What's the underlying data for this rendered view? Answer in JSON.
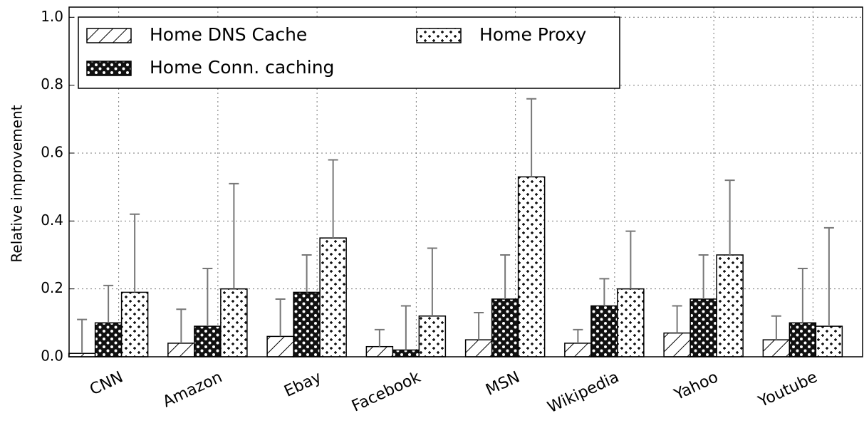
{
  "chart_data": {
    "type": "bar",
    "ylabel": "Relative improvement",
    "categories": [
      "CNN",
      "Amazon",
      "Ebay",
      "Facebook",
      "MSN",
      "Wikipedia",
      "Yahoo",
      "Youtube"
    ],
    "series": [
      {
        "name": "Home DNS Cache",
        "pattern": "hatch",
        "color": "#000000",
        "values": [
          0.01,
          0.04,
          0.06,
          0.03,
          0.05,
          0.04,
          0.07,
          0.05
        ],
        "errors": [
          0.1,
          0.1,
          0.11,
          0.05,
          0.08,
          0.04,
          0.08,
          0.07
        ]
      },
      {
        "name": "Home Conn. caching",
        "pattern": "stars",
        "color": "#000000",
        "values": [
          0.1,
          0.09,
          0.19,
          0.02,
          0.17,
          0.15,
          0.17,
          0.1
        ],
        "errors": [
          0.11,
          0.17,
          0.11,
          0.13,
          0.13,
          0.08,
          0.13,
          0.16
        ]
      },
      {
        "name": "Home Proxy",
        "pattern": "plus",
        "color": "#000000",
        "values": [
          0.19,
          0.2,
          0.35,
          0.12,
          0.53,
          0.2,
          0.3,
          0.09
        ],
        "errors": [
          0.23,
          0.31,
          0.23,
          0.2,
          0.23,
          0.17,
          0.22,
          0.29
        ]
      }
    ],
    "ylim": [
      0,
      1.03
    ],
    "yticks": [
      {
        "value": 0,
        "label": "0.0"
      },
      0.2,
      0.4,
      0.6,
      0.8,
      {
        "value": 1,
        "label": "1.0"
      }
    ],
    "grid": true,
    "legend": "upper left"
  }
}
